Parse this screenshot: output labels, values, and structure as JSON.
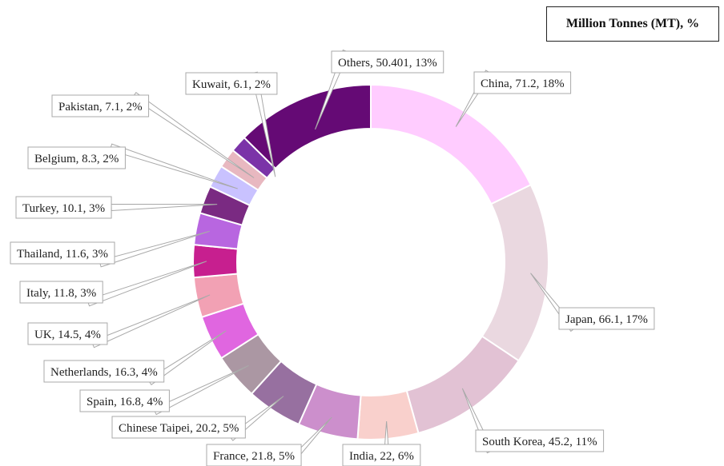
{
  "chart_data": {
    "type": "pie",
    "title": "Million Tonnes (MT), %",
    "categories": [
      "China",
      "Japan",
      "South Korea",
      "India",
      "France",
      "Chinese Taipei",
      "Spain",
      "Netherlands",
      "UK",
      "Italy",
      "Thailand",
      "Turkey",
      "Belgium",
      "Pakistan",
      "Kuwait",
      "Others"
    ],
    "values": [
      71.2,
      66.1,
      45.2,
      22,
      21.8,
      20.2,
      16.8,
      16.3,
      14.5,
      11.8,
      11.6,
      10.1,
      8.3,
      7.1,
      6.1,
      50.401
    ],
    "labels": [
      "China, 71.2, 18%",
      "Japan, 66.1, 17%",
      "South Korea, 45.2, 11%",
      "India, 22, 6%",
      "France, 21.8, 5%",
      "Chinese Taipei, 20.2, 5%",
      "Spain, 16.8, 4%",
      "Netherlands, 16.3, 4%",
      "UK, 14.5, 4%",
      "Italy, 11.8, 3%",
      "Thailand, 11.6, 3%",
      "Turkey, 10.1, 3%",
      "Belgium, 8.3, 2%",
      "Pakistan, 7.1, 2%",
      "Kuwait, 6.1, 2%",
      "Others, 50.401, 13%"
    ],
    "colors": [
      "#ffccff",
      "#ead8e0",
      "#e2c2d4",
      "#f9d0cc",
      "#cc8fcc",
      "#9770a0",
      "#ab97a3",
      "#e066e0",
      "#f2a1b4",
      "#c71f8f",
      "#b866e0",
      "#7a2a82",
      "#c9c2ff",
      "#e8b8c0",
      "#7b33a8",
      "#650a75"
    ],
    "legend": "none",
    "donut": true
  }
}
